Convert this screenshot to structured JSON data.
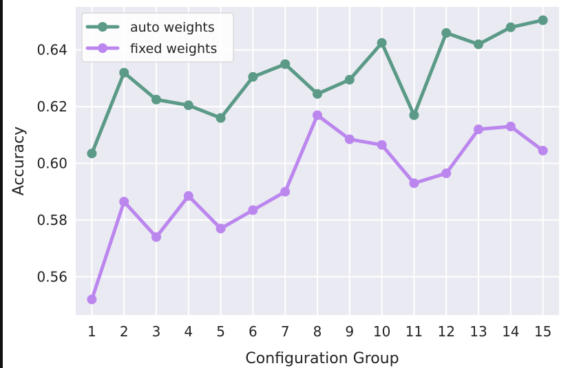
{
  "chart_data": {
    "type": "line",
    "xlabel": "Configuration Group",
    "ylabel": "Accuracy",
    "categories": [
      "1",
      "2",
      "3",
      "4",
      "5",
      "6",
      "7",
      "8",
      "9",
      "10",
      "11",
      "12",
      "13",
      "14",
      "15"
    ],
    "x": [
      1,
      2,
      3,
      4,
      5,
      6,
      7,
      8,
      9,
      10,
      11,
      12,
      13,
      14,
      15
    ],
    "xlim": [
      0.5,
      15.5
    ],
    "ylim": [
      0.5465,
      0.6552
    ],
    "yticks": [
      0.56,
      0.58,
      0.6,
      0.62,
      0.64
    ],
    "ytick_labels": [
      "0.56",
      "0.58",
      "0.60",
      "0.62",
      "0.64"
    ],
    "grid": true,
    "legend_position": "top-left",
    "background": "#eaeaf2",
    "series": [
      {
        "name": "auto weights",
        "color": "#5a9a87",
        "values": [
          0.6035,
          0.632,
          0.6225,
          0.6205,
          0.616,
          0.6305,
          0.635,
          0.6245,
          0.6295,
          0.6425,
          0.617,
          0.646,
          0.642,
          0.648,
          0.6505
        ]
      },
      {
        "name": "fixed weights",
        "color": "#bb86ee",
        "values": [
          0.552,
          0.5865,
          0.574,
          0.5885,
          0.577,
          0.5835,
          0.59,
          0.617,
          0.6085,
          0.6065,
          0.593,
          0.5965,
          0.612,
          0.613,
          0.6045
        ]
      }
    ]
  }
}
